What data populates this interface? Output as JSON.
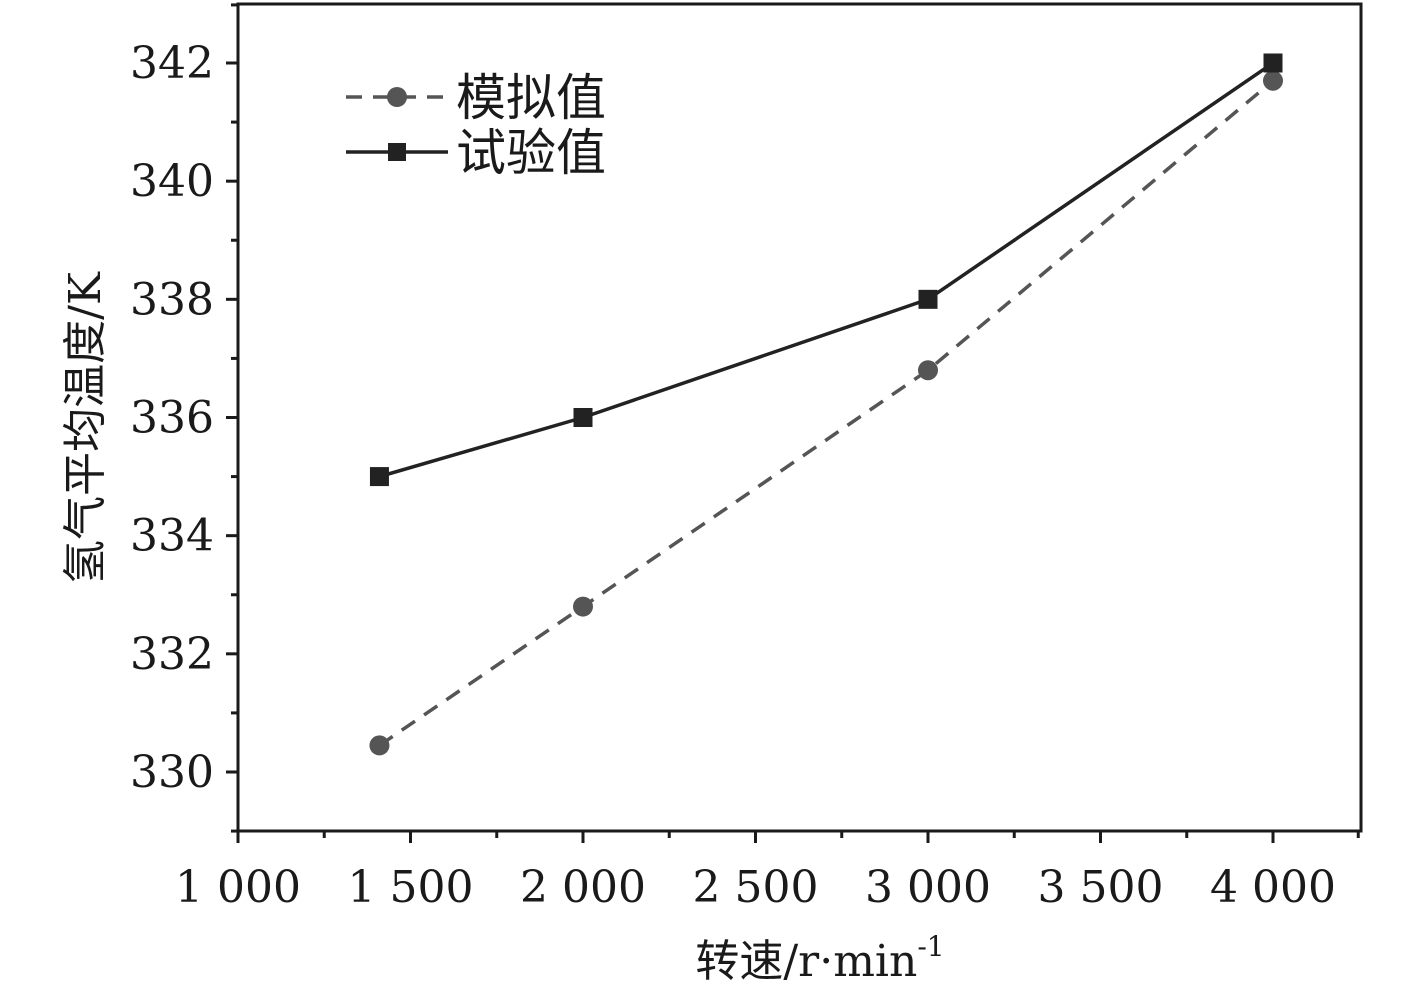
{
  "chart_data": {
    "type": "line",
    "xlabel": "转速/r·min",
    "xlabel_superscript": "-1",
    "ylabel": "氢气平均温度/K",
    "xlim": [
      1000,
      4250
    ],
    "ylim": [
      329,
      343
    ],
    "x_ticks": [
      1000,
      1500,
      2000,
      2500,
      3000,
      3500,
      4000
    ],
    "x_tick_labels": [
      "1 000",
      "1 500",
      "2 000",
      "2 500",
      "3 000",
      "3 500",
      "4 000"
    ],
    "y_ticks": [
      330,
      332,
      334,
      336,
      338,
      340,
      342
    ],
    "y_tick_labels": [
      "330",
      "332",
      "334",
      "336",
      "338",
      "340",
      "342"
    ],
    "grid": false,
    "legend_position": "top-left",
    "series": [
      {
        "name": "模拟值",
        "marker": "circle",
        "line_style": "dashed",
        "color": "#555555",
        "x": [
          1410,
          2000,
          3000,
          4000
        ],
        "values": [
          330.45,
          332.8,
          336.8,
          341.7
        ]
      },
      {
        "name": "试验值",
        "marker": "square",
        "line_style": "solid",
        "color": "#222222",
        "x": [
          1410,
          2000,
          3000,
          4000
        ],
        "values": [
          335.0,
          336.0,
          338.0,
          342.0
        ]
      }
    ]
  }
}
